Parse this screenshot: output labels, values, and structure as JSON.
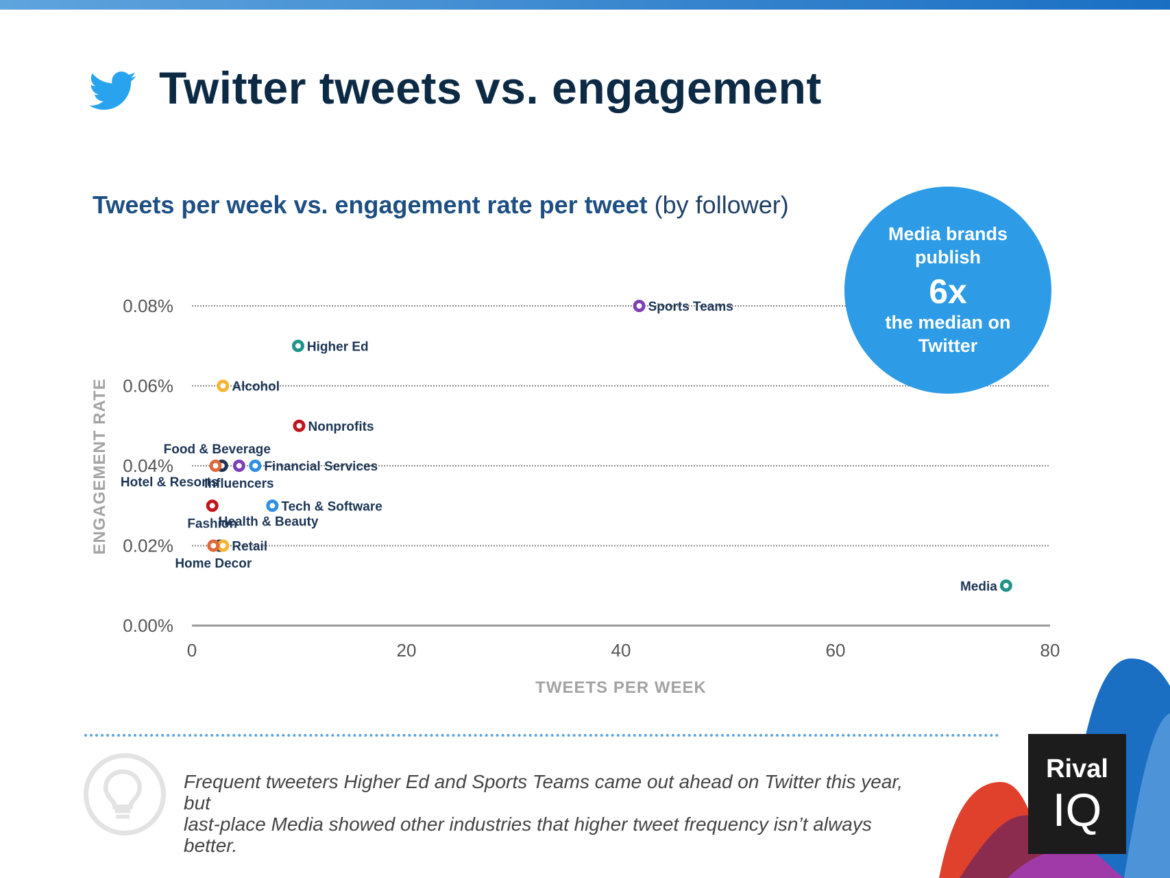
{
  "header": {
    "title": "Twitter tweets vs. engagement",
    "subtitle_bold": "Tweets per week vs. engagement rate per tweet",
    "subtitle_light": "(by follower)"
  },
  "callout": {
    "line1": "Media brands",
    "line2": "publish",
    "big": "6x",
    "line3": "the median on",
    "line4": "Twitter"
  },
  "footer": {
    "note_line1": "Frequent tweeters Higher Ed and Sports Teams came out ahead on Twitter this year, but",
    "note_line2": "last-place Media showed other industries that higher tweet frequency isn’t always better.",
    "brand_top": "Rival",
    "brand_bottom": "IQ"
  },
  "colors": {
    "title": "#0d2a45",
    "subtitle": "#1e4f82",
    "callout": "#2d9be6",
    "purple": "#7d3fb6",
    "teal": "#1e9488",
    "yellow": "#f4b431",
    "red": "#c2141c",
    "navy": "#1c3454",
    "blue": "#2e8fe0",
    "orange": "#e0683b"
  },
  "chart_data": {
    "type": "scatter",
    "title": "Tweets per week vs. engagement rate per tweet (by follower)",
    "xlabel": "TWEETS PER WEEK",
    "ylabel": "ENGAGEMENT RATE",
    "xlim": [
      0,
      80
    ],
    "ylim": [
      0,
      0.08
    ],
    "xticks": [
      "0",
      "20",
      "40",
      "60",
      "80"
    ],
    "yticks": [
      "0.00%",
      "0.02%",
      "0.04%",
      "0.06%",
      "0.08%"
    ],
    "grid": "horizontal dotted",
    "points": [
      {
        "label": "Sports Teams",
        "x": 41.7,
        "y": 0.08,
        "color": "purple",
        "label_pos": "right"
      },
      {
        "label": "Higher Ed",
        "x": 9.9,
        "y": 0.07,
        "color": "teal",
        "label_pos": "right"
      },
      {
        "label": "Alcohol",
        "x": 2.9,
        "y": 0.06,
        "color": "yellow",
        "label_pos": "right"
      },
      {
        "label": "Nonprofits",
        "x": 10.0,
        "y": 0.05,
        "color": "red",
        "label_pos": "right"
      },
      {
        "label": "Food & Beverage",
        "x": 2.8,
        "y": 0.04,
        "color": "navy",
        "label_pos": "above"
      },
      {
        "label": "Hotel & Resorts",
        "x": 2.2,
        "y": 0.04,
        "color": "orange",
        "label_pos": "below-left"
      },
      {
        "label": "Influencers",
        "x": 4.4,
        "y": 0.04,
        "color": "purple",
        "label_pos": "below"
      },
      {
        "label": "Financial Services",
        "x": 5.9,
        "y": 0.04,
        "color": "blue",
        "label_pos": "right"
      },
      {
        "label": "Fashion",
        "x": 1.9,
        "y": 0.03,
        "color": "red",
        "label_pos": "below"
      },
      {
        "label": "Tech & Software",
        "x": 7.5,
        "y": 0.03,
        "color": "blue",
        "label_pos": "right"
      },
      {
        "label": "Health & Beauty",
        "x": 2.6,
        "y": 0.02,
        "color": "navy",
        "label_pos": "above-right"
      },
      {
        "label": "Retail",
        "x": 2.9,
        "y": 0.02,
        "color": "yellow",
        "label_pos": "right"
      },
      {
        "label": "Home Decor",
        "x": 2.0,
        "y": 0.02,
        "color": "orange",
        "label_pos": "below"
      },
      {
        "label": "Media",
        "x": 75.9,
        "y": 0.01,
        "color": "teal",
        "label_pos": "left"
      }
    ]
  }
}
